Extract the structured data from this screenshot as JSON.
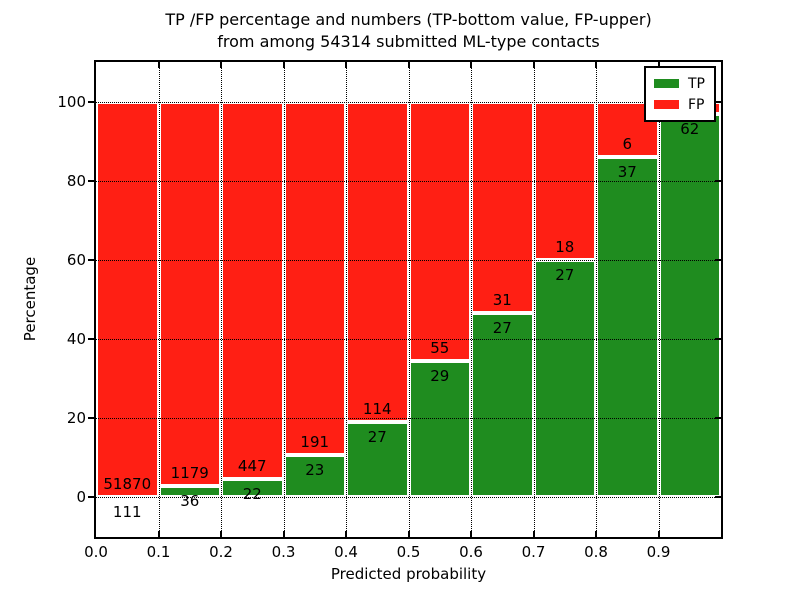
{
  "title": {
    "line1": "TP /FP percentage and numbers (TP-bottom value, FP-upper)",
    "line2": "from among 54314 submitted ML-type contacts"
  },
  "axes": {
    "xlabel": "Predicted probability",
    "ylabel": "Percentage",
    "x_tick_labels": [
      "0.0",
      "0.1",
      "0.2",
      "0.3",
      "0.4",
      "0.5",
      "0.6",
      "0.7",
      "0.8",
      "0.9"
    ],
    "y_tick_labels": [
      "0",
      "20",
      "40",
      "60",
      "80",
      "100"
    ],
    "y_tick_values": [
      0,
      20,
      40,
      60,
      80,
      100
    ],
    "xlim": [
      0.0,
      1.0
    ],
    "ylim": [
      -10,
      110
    ],
    "grid": "dotted black, drawn above bars"
  },
  "legend": {
    "position": "upper right",
    "items": [
      {
        "label": "TP",
        "color": "#1f8c1f"
      },
      {
        "label": "FP",
        "color": "#ff1f14"
      }
    ]
  },
  "colors": {
    "tp": "#1f8c1f",
    "fp": "#ff1f14",
    "bar_edge": "#ffffff",
    "background": "#ffffff",
    "axis": "#000000"
  },
  "chart_data": {
    "type": "bar",
    "stacked": true,
    "normalized_to": 100,
    "title": "TP /FP percentage and numbers (TP-bottom value, FP-upper) from among 54314 submitted ML-type contacts",
    "xlabel": "Predicted probability",
    "ylabel": "Percentage",
    "total_contacts_in_title": 54314,
    "bin_width": 0.1,
    "bins": [
      {
        "range": "0.0-0.1",
        "tp": 111,
        "fp": 51870,
        "tp_pct": 0.21
      },
      {
        "range": "0.1-0.2",
        "tp": 36,
        "fp": 1179,
        "tp_pct": 2.96
      },
      {
        "range": "0.2-0.3",
        "tp": 22,
        "fp": 447,
        "tp_pct": 4.69
      },
      {
        "range": "0.3-0.4",
        "tp": 23,
        "fp": 191,
        "tp_pct": 10.75
      },
      {
        "range": "0.4-0.5",
        "tp": 27,
        "fp": 114,
        "tp_pct": 19.15
      },
      {
        "range": "0.5-0.6",
        "tp": 29,
        "fp": 55,
        "tp_pct": 34.52
      },
      {
        "range": "0.6-0.7",
        "tp": 27,
        "fp": 31,
        "tp_pct": 46.55
      },
      {
        "range": "0.7-0.8",
        "tp": 27,
        "fp": 18,
        "tp_pct": 60.0
      },
      {
        "range": "0.8-0.9",
        "tp": 37,
        "fp": 6,
        "tp_pct": 86.05
      },
      {
        "range": "0.9-1.0",
        "tp": 62,
        "fp": null,
        "tp_pct": 96.9
      }
    ]
  }
}
